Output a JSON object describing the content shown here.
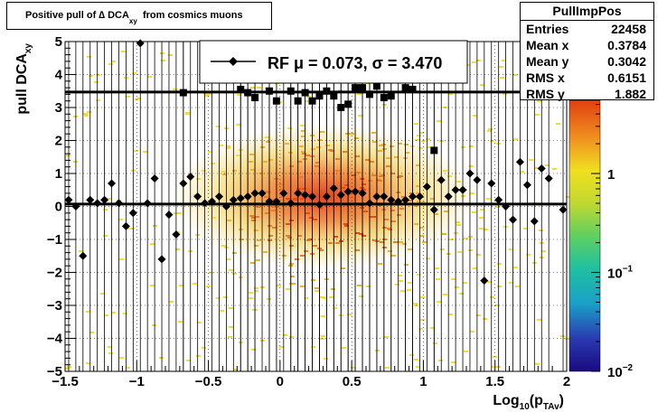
{
  "chart_data": {
    "type": "scatter",
    "title_main": "Positive pull of ∆ DCA",
    "title_sub": "xy",
    "title_tail": "from cosmics muons",
    "xlabel_main": "Log",
    "xlabel_sub1": "10",
    "xlabel_mid": "(p",
    "xlabel_sub2": "TAv",
    "xlabel_end": ")",
    "ylabel_main": "pull DCA",
    "ylabel_sub": "xy",
    "xlim": [
      -1.5,
      2.0
    ],
    "ylim": [
      -5,
      5
    ],
    "x_ticks": [
      {
        "v": -1.5,
        "label": "−1.5"
      },
      {
        "v": -1,
        "label": "−1"
      },
      {
        "v": -0.5,
        "label": "−0.5"
      },
      {
        "v": 0,
        "label": "0"
      },
      {
        "v": 0.5,
        "label": "0.5"
      },
      {
        "v": 1,
        "label": "1"
      },
      {
        "v": 1.5,
        "label": "1.5"
      },
      {
        "v": 2,
        "label": "2"
      }
    ],
    "y_ticks": [
      {
        "v": 5,
        "label": "5"
      },
      {
        "v": 4,
        "label": "4"
      },
      {
        "v": 3,
        "label": "3"
      },
      {
        "v": 2,
        "label": "2"
      },
      {
        "v": 1,
        "label": "1"
      },
      {
        "v": 0,
        "label": "0"
      },
      {
        "v": -1,
        "label": "−1"
      },
      {
        "v": -2,
        "label": "−2"
      },
      {
        "v": -3,
        "label": "−3"
      },
      {
        "v": -4,
        "label": "−4"
      },
      {
        "v": -5,
        "label": "−5"
      }
    ],
    "color_scale": "log",
    "color_ticks": [
      {
        "v": 1,
        "base": "1",
        "exp": ""
      },
      {
        "v": 0.1,
        "base": "10",
        "exp": "−1"
      },
      {
        "v": 0.01,
        "base": "10",
        "exp": "−2"
      }
    ],
    "colors": {
      "marker": "#000000",
      "fit_line": "#000000"
    },
    "grid": "dotted",
    "legend": {
      "text": "RF μ =  0.073, σ =   3.470",
      "position": "top-center"
    },
    "stats_box": {
      "title": "PullImpPos",
      "rows": [
        {
          "key": "Entries",
          "value": "22458"
        },
        {
          "key": "Mean x",
          "value": "0.3784"
        },
        {
          "key": "Mean y",
          "value": "0.3042"
        },
        {
          "key": "RMS x",
          "value": "0.6151"
        },
        {
          "key": "RMS y",
          "value": "1.882"
        }
      ]
    },
    "horizontal_lines": [
      3.47,
      0.073
    ],
    "points_diamond": [
      [
        -1.475,
        0.2
      ],
      [
        -1.425,
        0.0
      ],
      [
        -1.375,
        -1.5
      ],
      [
        -1.325,
        0.2
      ],
      [
        -1.275,
        0.1
      ],
      [
        -1.225,
        0.2
      ],
      [
        -1.175,
        0.7
      ],
      [
        -1.125,
        0.1
      ],
      [
        -1.075,
        -0.6
      ],
      [
        -1.025,
        -0.2
      ],
      [
        -0.975,
        4.95
      ],
      [
        -0.925,
        0.1
      ],
      [
        -0.875,
        0.85
      ],
      [
        -0.825,
        -1.6
      ],
      [
        -0.775,
        -0.25
      ],
      [
        -0.725,
        -0.85
      ],
      [
        -0.675,
        0.7
      ],
      [
        -0.625,
        0.9
      ],
      [
        -0.575,
        0.3
      ],
      [
        -0.525,
        0.1
      ],
      [
        -0.475,
        0.15
      ],
      [
        -0.425,
        0.3
      ],
      [
        -0.375,
        0.0
      ],
      [
        -0.325,
        0.2
      ],
      [
        -0.275,
        0.25
      ],
      [
        -0.225,
        0.3
      ],
      [
        -0.175,
        0.4
      ],
      [
        -0.125,
        0.4
      ],
      [
        -0.075,
        0.15
      ],
      [
        -0.025,
        0.15
      ],
      [
        0.025,
        0.4
      ],
      [
        0.075,
        0.1
      ],
      [
        0.125,
        0.4
      ],
      [
        0.175,
        0.35
      ],
      [
        0.225,
        0.3
      ],
      [
        0.275,
        0.05
      ],
      [
        0.325,
        0.3
      ],
      [
        0.375,
        0.55
      ],
      [
        0.425,
        0.35
      ],
      [
        0.475,
        0.45
      ],
      [
        0.525,
        0.45
      ],
      [
        0.575,
        0.4
      ],
      [
        0.625,
        0.1
      ],
      [
        0.675,
        0.3
      ],
      [
        0.725,
        0.3
      ],
      [
        0.775,
        0.2
      ],
      [
        0.825,
        0.15
      ],
      [
        0.875,
        0.2
      ],
      [
        0.925,
        0.3
      ],
      [
        0.975,
        0.3
      ],
      [
        1.025,
        0.6
      ],
      [
        1.075,
        -0.1
      ],
      [
        1.125,
        0.8
      ],
      [
        1.175,
        0.3
      ],
      [
        1.225,
        0.5
      ],
      [
        1.275,
        0.5
      ],
      [
        1.325,
        1.0
      ],
      [
        1.375,
        0.8
      ],
      [
        1.425,
        -2.25
      ],
      [
        1.475,
        0.7
      ],
      [
        1.525,
        0.2
      ],
      [
        1.575,
        0.0
      ],
      [
        1.625,
        -0.4
      ],
      [
        1.675,
        1.35
      ],
      [
        1.725,
        0.65
      ],
      [
        1.775,
        -0.45
      ],
      [
        1.825,
        1.15
      ],
      [
        1.875,
        0.85
      ],
      [
        1.975,
        -0.1
      ]
    ],
    "points_square": [
      [
        -0.675,
        3.45
      ],
      [
        -0.275,
        3.55
      ],
      [
        -0.225,
        3.45
      ],
      [
        -0.175,
        3.3
      ],
      [
        -0.075,
        3.5
      ],
      [
        -0.025,
        3.2
      ],
      [
        0.075,
        3.5
      ],
      [
        0.125,
        3.2
      ],
      [
        0.175,
        3.45
      ],
      [
        0.225,
        3.2
      ],
      [
        0.275,
        3.35
      ],
      [
        0.325,
        3.5
      ],
      [
        0.375,
        3.35
      ],
      [
        0.425,
        3.0
      ],
      [
        0.475,
        3.1
      ],
      [
        0.525,
        3.6
      ],
      [
        0.575,
        3.6
      ],
      [
        0.625,
        3.4
      ],
      [
        0.675,
        3.65
      ],
      [
        0.725,
        3.3
      ],
      [
        0.775,
        3.35
      ],
      [
        0.875,
        3.6
      ],
      [
        0.925,
        3.55
      ],
      [
        1.075,
        1.7
      ]
    ]
  }
}
